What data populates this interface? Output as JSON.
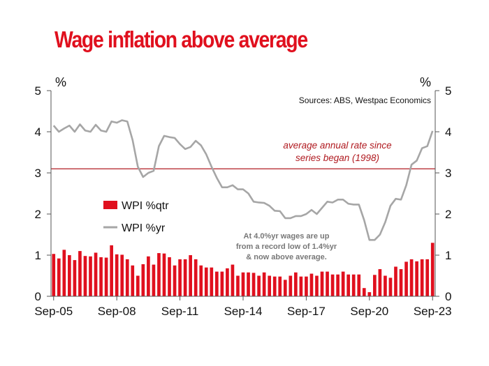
{
  "title": "Wage inflation above average",
  "chart_data": {
    "type": "bar+line",
    "title": "Wage inflation above average",
    "y_unit_left": "%",
    "y_unit_right": "%",
    "ylim": [
      0,
      5
    ],
    "yticks": [
      "0",
      "1",
      "2",
      "3",
      "4",
      "5"
    ],
    "x_start": "Sep-05",
    "x_end": "Sep-23",
    "frequency": "quarterly",
    "x_tick_labels": [
      "Sep-05",
      "Sep-08",
      "Sep-11",
      "Sep-14",
      "Sep-17",
      "Sep-20",
      "Sep-23"
    ],
    "source": "Sources: ABS, Westpac Economics",
    "reference_line": {
      "value": 3.1,
      "color": "#b01a20",
      "label_lines": [
        "average annual rate since",
        "series began (1998)"
      ]
    },
    "annotation_lines": [
      "At 4.0%yr wages are up",
      "from a record low of 1.4%yr",
      "& now above average."
    ],
    "series": [
      {
        "name": "WPI %qtr",
        "kind": "bar",
        "color": "#e0101e",
        "values": [
          1.03,
          0.92,
          1.13,
          1.0,
          0.88,
          1.1,
          0.98,
          0.97,
          1.06,
          0.95,
          0.94,
          1.24,
          1.02,
          1.01,
          0.9,
          0.75,
          0.5,
          0.78,
          0.97,
          0.77,
          1.05,
          1.04,
          0.95,
          0.75,
          0.9,
          0.9,
          1.0,
          0.9,
          0.75,
          0.7,
          0.7,
          0.6,
          0.6,
          0.68,
          0.77,
          0.5,
          0.58,
          0.58,
          0.57,
          0.5,
          0.58,
          0.5,
          0.48,
          0.48,
          0.4,
          0.5,
          0.58,
          0.48,
          0.48,
          0.55,
          0.5,
          0.6,
          0.6,
          0.53,
          0.53,
          0.6,
          0.53,
          0.53,
          0.53,
          0.2,
          0.1,
          0.52,
          0.66,
          0.5,
          0.45,
          0.72,
          0.66,
          0.84,
          0.9,
          0.85,
          0.9,
          0.9,
          1.3
        ]
      },
      {
        "name": "WPI %yr",
        "kind": "line",
        "color": "#a6a6a6",
        "values": [
          4.15,
          4.0,
          4.08,
          4.15,
          4.0,
          4.18,
          4.03,
          4.0,
          4.17,
          4.03,
          4.0,
          4.25,
          4.22,
          4.28,
          4.25,
          3.8,
          3.15,
          2.9,
          3.0,
          3.05,
          3.65,
          3.9,
          3.87,
          3.85,
          3.7,
          3.58,
          3.63,
          3.78,
          3.67,
          3.45,
          3.15,
          2.88,
          2.65,
          2.65,
          2.7,
          2.6,
          2.6,
          2.5,
          2.3,
          2.28,
          2.27,
          2.2,
          2.08,
          2.07,
          1.9,
          1.9,
          1.95,
          1.95,
          2.0,
          2.1,
          2.0,
          2.15,
          2.3,
          2.28,
          2.35,
          2.35,
          2.25,
          2.23,
          2.23,
          1.85,
          1.37,
          1.37,
          1.5,
          1.8,
          2.2,
          2.37,
          2.35,
          2.7,
          3.2,
          3.3,
          3.6,
          3.65,
          4.02
        ]
      }
    ],
    "legend": "middle-left"
  }
}
